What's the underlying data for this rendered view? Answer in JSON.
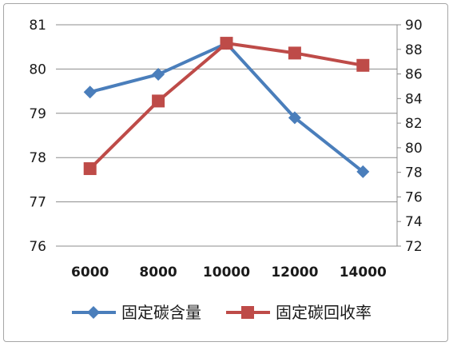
{
  "chart_data": {
    "type": "line",
    "categories": [
      "6000",
      "8000",
      "10000",
      "12000",
      "14000"
    ],
    "series": [
      {
        "name": "固定碳含量",
        "axis": "left",
        "color": "#4a7ebb",
        "marker": "diamond",
        "values": [
          79.48,
          79.88,
          80.58,
          78.9,
          77.68
        ]
      },
      {
        "name": "固定碳回收率",
        "axis": "right",
        "color": "#be4b48",
        "marker": "square",
        "values": [
          78.3,
          83.8,
          88.5,
          87.7,
          86.7
        ]
      }
    ],
    "y_left": {
      "min": 76,
      "max": 81,
      "step": 1,
      "ticks": [
        "76",
        "77",
        "78",
        "79",
        "80",
        "81"
      ]
    },
    "y_right": {
      "min": 72,
      "max": 90,
      "step": 2,
      "ticks": [
        "72",
        "74",
        "76",
        "78",
        "80",
        "82",
        "84",
        "86",
        "88",
        "90"
      ]
    },
    "grid": true,
    "legend": "bottom"
  }
}
